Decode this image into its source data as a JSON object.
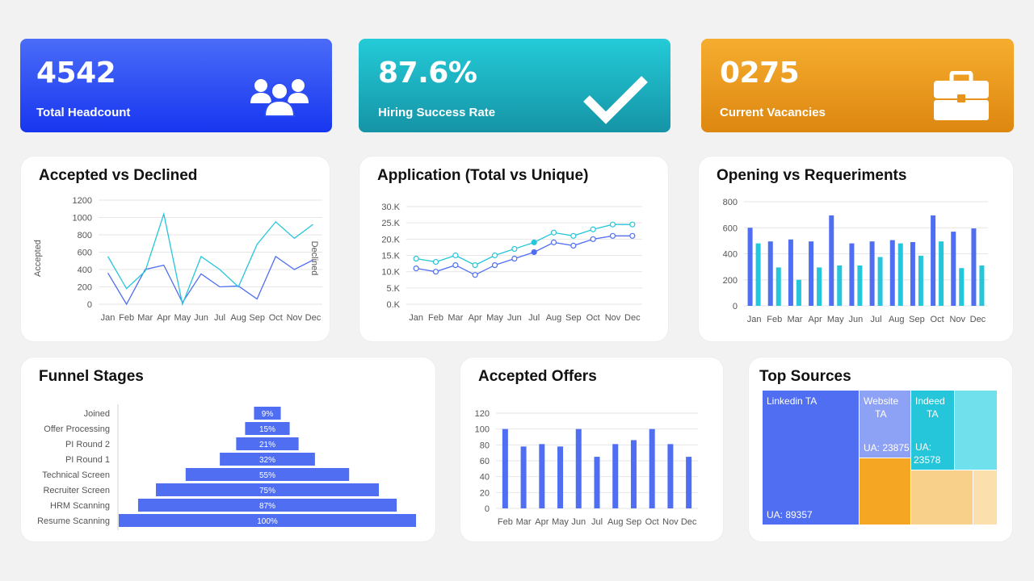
{
  "kpis": [
    {
      "value": "4542",
      "label": "Total Headcount",
      "icon": "people-icon"
    },
    {
      "value": "87.6%",
      "label": "Hiring Success Rate",
      "icon": "checkmark-icon"
    },
    {
      "value": "0275",
      "label": "Current Vacancies",
      "icon": "briefcase-icon"
    }
  ],
  "colors": {
    "blue": "#4f6ef2",
    "teal": "#26c6da",
    "orange": "#f5a623",
    "light_orange": "#f9d08a"
  },
  "chart_data": [
    {
      "id": "accepted_vs_declined",
      "type": "line",
      "title": "Accepted vs Declined",
      "categories": [
        "Jan",
        "Feb",
        "Mar",
        "Apr",
        "May",
        "Jun",
        "Jul",
        "Aug",
        "Sep",
        "Oct",
        "Nov",
        "Dec"
      ],
      "ylabel": "Accepted",
      "y2label": "Declined",
      "yticks": [
        "0",
        "200",
        "400",
        "600",
        "800",
        "1000",
        "1200"
      ],
      "ylim": [
        0,
        1200
      ],
      "series": [
        {
          "values": [
            360,
            0,
            400,
            450,
            20,
            350,
            200,
            210,
            60,
            550,
            400,
            510
          ],
          "color": "#4f6ef2"
        },
        {
          "values": [
            550,
            180,
            380,
            1040,
            0,
            550,
            400,
            200,
            690,
            950,
            760,
            920
          ],
          "color": "#26c6da"
        }
      ]
    },
    {
      "id": "application_total_vs_unique",
      "type": "line",
      "title": "Application (Total vs Unique)",
      "categories": [
        "Jan",
        "Feb",
        "Mar",
        "Apr",
        "May",
        "Jun",
        "Jul",
        "Aug",
        "Sep",
        "Oct",
        "Nov",
        "Dec"
      ],
      "yticks": [
        "0.K",
        "5.K",
        "10.K",
        "15.K",
        "20.K",
        "25.K",
        "30.K"
      ],
      "ylim": [
        0,
        30000
      ],
      "series": [
        {
          "values": [
            14000,
            13000,
            15000,
            12000,
            15000,
            17000,
            19000,
            22000,
            21000,
            23000,
            24500,
            24500
          ],
          "color": "#26c6da"
        },
        {
          "values": [
            11000,
            10000,
            12000,
            9000,
            12000,
            14000,
            16000,
            19000,
            18000,
            20000,
            21000,
            21000
          ],
          "color": "#4f6ef2"
        }
      ]
    },
    {
      "id": "opening_vs_requirements",
      "type": "bar",
      "title": "Opening vs Requeriments",
      "categories": [
        "Jan",
        "Feb",
        "Mar",
        "Apr",
        "May",
        "Jun",
        "Jul",
        "Aug",
        "Sep",
        "Oct",
        "Nov",
        "Dec"
      ],
      "yticks": [
        "0",
        "200",
        "400",
        "600",
        "800"
      ],
      "ylim": [
        0,
        800
      ],
      "series": [
        {
          "values": [
            600,
            495,
            510,
            495,
            695,
            480,
            495,
            505,
            490,
            695,
            570,
            595
          ],
          "color": "#4f6ef2"
        },
        {
          "values": [
            480,
            295,
            200,
            295,
            310,
            310,
            375,
            480,
            385,
            495,
            290,
            310
          ],
          "color": "#26c6da"
        }
      ]
    },
    {
      "id": "funnel_stages",
      "type": "bar",
      "orientation": "horizontal-centered",
      "title": "Funnel Stages",
      "categories": [
        "Joined",
        "Offer Processing",
        "PI Round 2",
        "PI Round 1",
        "Technical Screen",
        "Recruiter Screen",
        "HRM Scanning",
        "Resume Scanning"
      ],
      "values": [
        9,
        15,
        21,
        32,
        55,
        75,
        87,
        100
      ],
      "labels": [
        "9%",
        "15%",
        "21%",
        "32%",
        "55%",
        "75%",
        "87%",
        "100%"
      ],
      "color": "#4f6ef2"
    },
    {
      "id": "accepted_offers",
      "type": "bar",
      "title": "Accepted Offers",
      "categories": [
        "Feb",
        "Mar",
        "Apr",
        "May",
        "Jun",
        "Jul",
        "Aug",
        "Sep",
        "Oct",
        "Nov",
        "Dec"
      ],
      "yticks": [
        "0",
        "20",
        "40",
        "60",
        "80",
        "100",
        "120"
      ],
      "ylim": [
        0,
        120
      ],
      "values": [
        100,
        78,
        81,
        78,
        100,
        65,
        81,
        86,
        100,
        81,
        65
      ],
      "color": "#4f6ef2"
    },
    {
      "id": "top_sources",
      "type": "heatmap",
      "subtype": "treemap",
      "title": "Top Sources",
      "items": [
        {
          "name": "Linkedin TA",
          "value_label": "UA: 89357"
        },
        {
          "name": "Website TA",
          "value_label": "UA: 23875"
        },
        {
          "name": "Indeed TA",
          "value_label": "UA: 23578"
        }
      ]
    }
  ]
}
